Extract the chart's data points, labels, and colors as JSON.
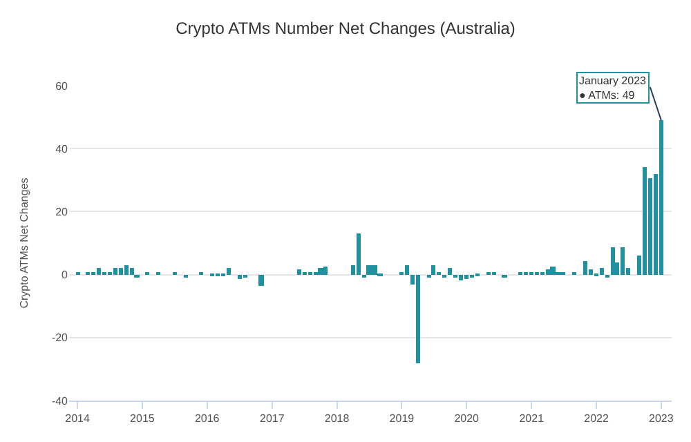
{
  "chart_data": {
    "type": "bar",
    "title": "Crypto ATMs Number Net Changes (Australia)",
    "ylabel": "Crypto ATMs Net Changes",
    "x": [
      "2014-01",
      "2014-02",
      "2014-03",
      "2014-04",
      "2014-05",
      "2014-06",
      "2014-07",
      "2014-08",
      "2014-09",
      "2014-10",
      "2014-11",
      "2014-12",
      "2015-01",
      "2015-02",
      "2015-03",
      "2015-04",
      "2015-05",
      "2015-06",
      "2015-07",
      "2015-08",
      "2015-09",
      "2015-10",
      "2015-11",
      "2015-12",
      "2016-01",
      "2016-02",
      "2016-03",
      "2016-04",
      "2016-05",
      "2016-06",
      "2016-07",
      "2016-08",
      "2016-09",
      "2016-10",
      "2016-11",
      "2016-12",
      "2017-01",
      "2017-02",
      "2017-03",
      "2017-04",
      "2017-05",
      "2017-06",
      "2017-07",
      "2017-08",
      "2017-09",
      "2017-10",
      "2017-11",
      "2017-12",
      "2018-01",
      "2018-02",
      "2018-03",
      "2018-04",
      "2018-05",
      "2018-06",
      "2018-07",
      "2018-08",
      "2018-09",
      "2018-10",
      "2018-11",
      "2018-12",
      "2019-01",
      "2019-02",
      "2019-03",
      "2019-04",
      "2019-05",
      "2019-06",
      "2019-07",
      "2019-08",
      "2019-09",
      "2019-10",
      "2019-11",
      "2019-12",
      "2020-01",
      "2020-02",
      "2020-03",
      "2020-04",
      "2020-05",
      "2020-06",
      "2020-07",
      "2020-08",
      "2020-09",
      "2020-10",
      "2020-11",
      "2020-12",
      "2021-01",
      "2021-02",
      "2021-03",
      "2021-04",
      "2021-05",
      "2021-06",
      "2021-07",
      "2021-08",
      "2021-09",
      "2021-10",
      "2021-11",
      "2021-12",
      "2022-01",
      "2022-02",
      "2022-03",
      "2022-04",
      "2022-05",
      "2022-06",
      "2022-07",
      "2022-08",
      "2022-09",
      "2022-10",
      "2022-11",
      "2022-12",
      "2023-01"
    ],
    "series": [
      {
        "color": "#21919f",
        "values": [
          0.5,
          0,
          0.5,
          1,
          2,
          1,
          1,
          2,
          2,
          3,
          2,
          -1,
          0,
          0.5,
          0,
          0.5,
          0,
          0,
          0.5,
          0,
          -1,
          0,
          0,
          0.5,
          0,
          -0.5,
          -0.5,
          -0.5,
          2,
          0,
          -1.5,
          -1,
          0,
          0,
          -3.5,
          0,
          0,
          0,
          0,
          0,
          0,
          1.5,
          0.5,
          0.5,
          0.5,
          2,
          2.5,
          0,
          0,
          0,
          0,
          3,
          13,
          -1,
          3,
          3,
          -0.5,
          0,
          0,
          0,
          1,
          3,
          -3,
          -28,
          0,
          -1,
          3,
          1,
          -1,
          2,
          -1,
          -2,
          -1.5,
          -1,
          -0.5,
          0,
          0.5,
          0.5,
          0,
          -1,
          0,
          0,
          0.5,
          0.5,
          0.5,
          1,
          1,
          1.5,
          2.5,
          1,
          0.5,
          0,
          0.5,
          0,
          4.5,
          1.5,
          -0.5,
          2,
          -1,
          8.5,
          4,
          8.5,
          2,
          0,
          6,
          34,
          30.5,
          32,
          49
        ]
      }
    ],
    "xlim": [
      "2013-11-15",
      "2023-03-01"
    ],
    "xticks": [
      "2014",
      "2015",
      "2016",
      "2017",
      "2018",
      "2019",
      "2020",
      "2021",
      "2022",
      "2023"
    ],
    "ylim": [
      -40,
      60
    ],
    "yticks": [
      -40,
      -20,
      0,
      20,
      40,
      60
    ],
    "grid": "y",
    "legend": false,
    "annotations": [
      {
        "text": "January 2023\n● ATMs: 49",
        "x": "2023-01",
        "y": 49
      }
    ]
  }
}
